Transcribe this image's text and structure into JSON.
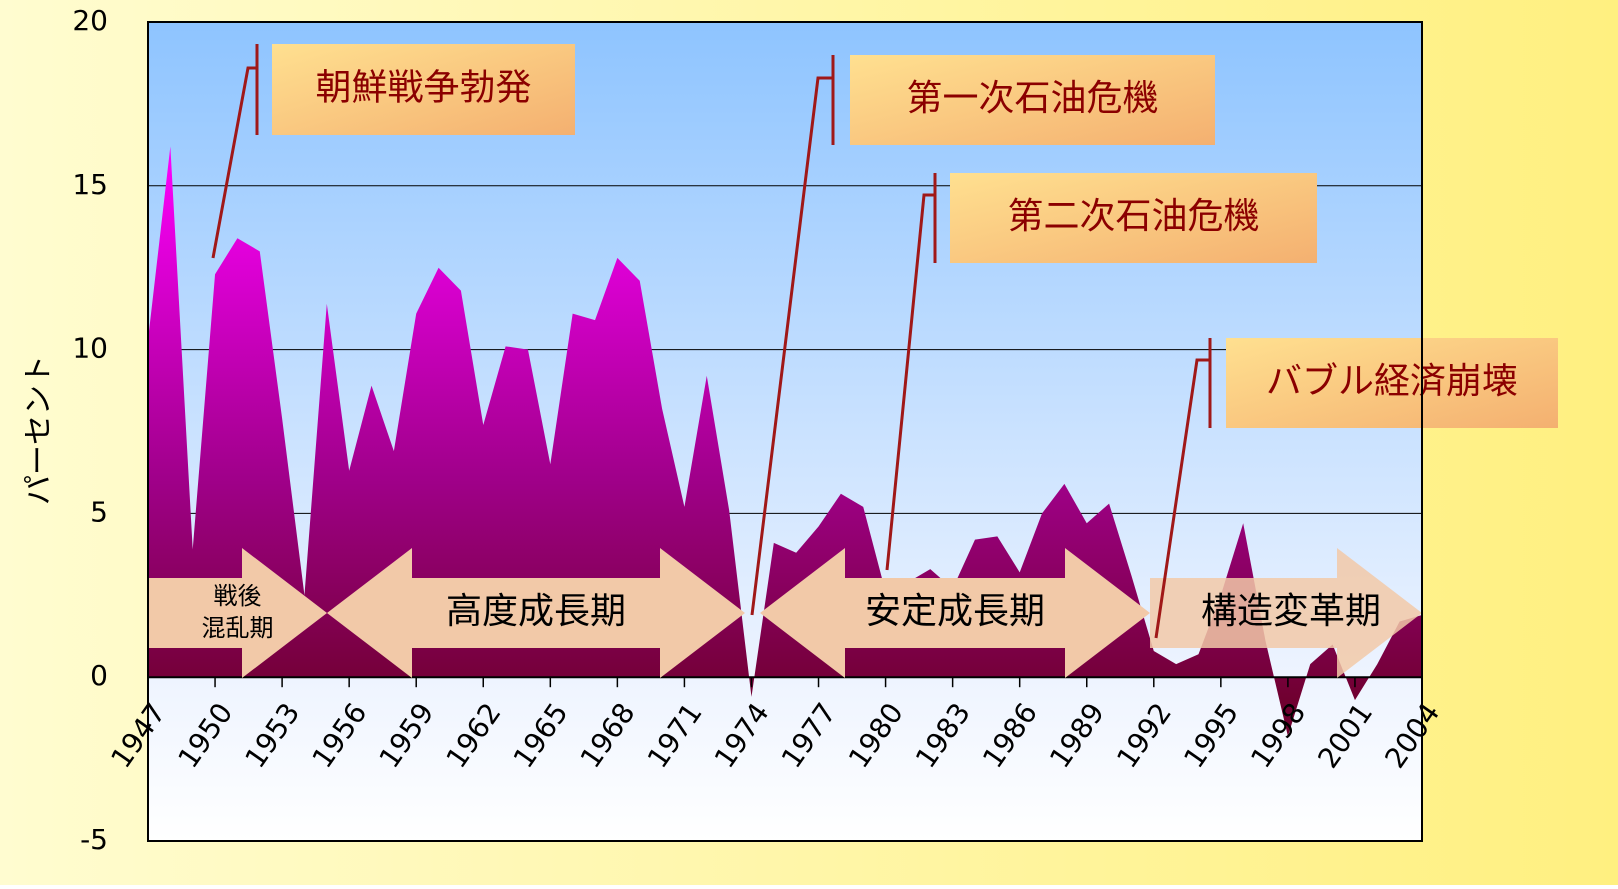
{
  "chart_data": {
    "type": "area",
    "y_label": "パーセント",
    "x": [
      1947,
      1948,
      1949,
      1950,
      1951,
      1952,
      1953,
      1954,
      1955,
      1956,
      1957,
      1958,
      1959,
      1960,
      1961,
      1962,
      1963,
      1964,
      1965,
      1966,
      1967,
      1968,
      1969,
      1970,
      1971,
      1972,
      1973,
      1974,
      1975,
      1976,
      1977,
      1978,
      1979,
      1980,
      1981,
      1982,
      1983,
      1984,
      1985,
      1986,
      1987,
      1988,
      1989,
      1990,
      1991,
      1992,
      1993,
      1994,
      1995,
      1996,
      1997,
      1998,
      1999,
      2000,
      2001,
      2002,
      2003,
      2004
    ],
    "values": [
      10.3,
      16.2,
      3.9,
      12.3,
      13.4,
      13.0,
      7.9,
      2.5,
      11.4,
      6.3,
      8.9,
      6.9,
      11.1,
      12.5,
      11.8,
      7.7,
      10.1,
      10.0,
      6.5,
      11.1,
      10.9,
      12.8,
      12.1,
      8.2,
      5.2,
      9.2,
      5.1,
      -0.6,
      4.1,
      3.8,
      4.6,
      5.6,
      5.2,
      2.6,
      2.9,
      3.3,
      2.7,
      4.2,
      4.3,
      3.2,
      5.0,
      5.9,
      4.7,
      5.3,
      3.1,
      0.8,
      0.4,
      0.7,
      2.5,
      4.7,
      1.1,
      -1.8,
      0.4,
      1.0,
      -0.7,
      0.4,
      1.7,
      1.9
    ],
    "xlim": [
      1947,
      2004
    ],
    "xticks": [
      1947,
      1950,
      1953,
      1956,
      1959,
      1962,
      1965,
      1968,
      1971,
      1974,
      1977,
      1980,
      1983,
      1986,
      1989,
      1992,
      1995,
      1998,
      2001,
      2004
    ],
    "ylim": [
      -5,
      20
    ],
    "yticks": [
      -5,
      0,
      5,
      10,
      15,
      20
    ],
    "grid": true,
    "periods": [
      [
        "戦後",
        "混乱期"
      ],
      [
        "高度成長期"
      ],
      [
        "安定成長期"
      ],
      [
        "構造変革期"
      ]
    ],
    "annotations": [
      "朝鮮戦争勃発",
      "第一次石油危機",
      "第二次石油危機",
      "バブル経済崩壊"
    ]
  }
}
